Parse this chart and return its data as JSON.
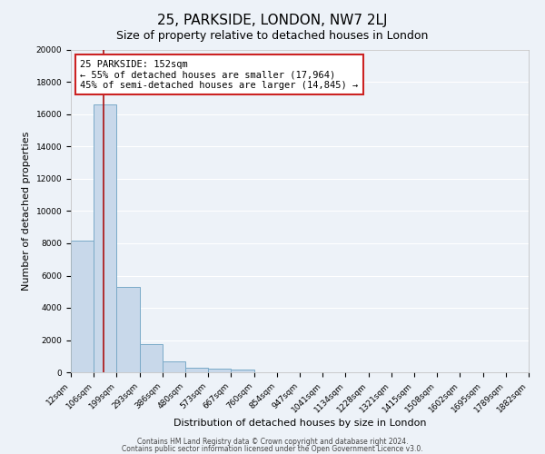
{
  "title": "25, PARKSIDE, LONDON, NW7 2LJ",
  "subtitle": "Size of property relative to detached houses in London",
  "xlabel": "Distribution of detached houses by size in London",
  "ylabel": "Number of detached properties",
  "bar_heights": [
    8150,
    16600,
    5300,
    1750,
    700,
    280,
    200,
    150,
    0,
    0,
    0,
    0,
    0,
    0,
    0,
    0,
    0,
    0,
    0,
    0
  ],
  "bar_labels": [
    "12sqm",
    "106sqm",
    "199sqm",
    "293sqm",
    "386sqm",
    "480sqm",
    "573sqm",
    "667sqm",
    "760sqm",
    "854sqm",
    "947sqm",
    "1041sqm",
    "1134sqm",
    "1228sqm",
    "1321sqm",
    "1415sqm",
    "1508sqm",
    "1602sqm",
    "1695sqm",
    "1789sqm",
    "1882sqm"
  ],
  "bar_color": "#c8d8ea",
  "bar_edge_color": "#7aaac8",
  "annotation_text_line1": "25 PARKSIDE: 152sqm",
  "annotation_text_line2": "← 55% of detached houses are smaller (17,964)",
  "annotation_text_line3": "45% of semi-detached houses are larger (14,845) →",
  "annotation_box_facecolor": "#ffffff",
  "annotation_box_edgecolor": "#cc2222",
  "vline_color": "#aa1111",
  "vline_x": 1.42,
  "ylim": [
    0,
    20000
  ],
  "yticks": [
    0,
    2000,
    4000,
    6000,
    8000,
    10000,
    12000,
    14000,
    16000,
    18000,
    20000
  ],
  "footer_line1": "Contains HM Land Registry data © Crown copyright and database right 2024.",
  "footer_line2": "Contains public sector information licensed under the Open Government Licence v3.0.",
  "bg_color": "#edf2f8",
  "grid_color": "#ffffff",
  "title_fontsize": 11,
  "subtitle_fontsize": 9,
  "tick_label_fontsize": 6.5,
  "ylabel_fontsize": 8,
  "xlabel_fontsize": 8,
  "annotation_fontsize": 7.5,
  "footer_fontsize": 5.5
}
